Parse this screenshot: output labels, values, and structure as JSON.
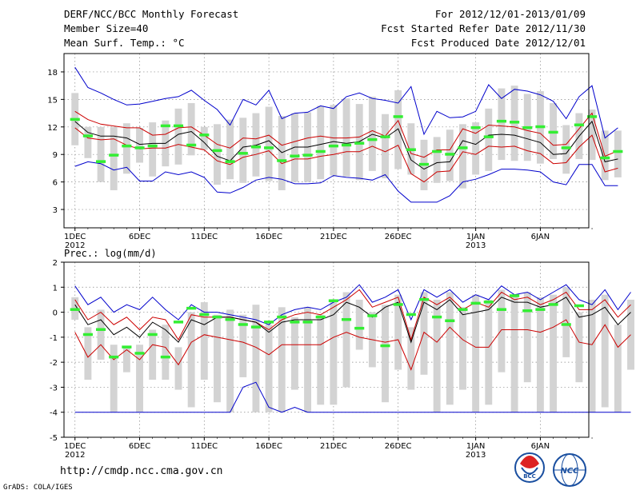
{
  "header": {
    "title": "DERF/NCC/BCC Monthly Forecast",
    "member_size": "Member Size=40",
    "variable": "Mean Surf. Temp.: °C",
    "period": "For 2012/12/01-2013/01/09",
    "started": "Fcst Started Refer Date 2012/11/30",
    "produced": "Fcst Produced Date 2012/12/01"
  },
  "footer": {
    "url": "http://cmdp.ncc.cma.gov.cn",
    "grads": "GrADS: COLA/IGES",
    "logo_bcc": "BCC",
    "logo_ncc": "NCC"
  },
  "colors": {
    "max_min": "#0000cc",
    "spread": "#cc0000",
    "mean": "#000000",
    "obs": "#33ee33",
    "box": "#d3d3d3",
    "grid": "#888888"
  },
  "chart_data": [
    {
      "type": "line",
      "title": "Mean Surf. Temp.: °C",
      "ylim": [
        1,
        20
      ],
      "yticks": [
        3,
        6,
        9,
        12,
        15,
        18
      ],
      "xtick_days": [
        1,
        6,
        11,
        16,
        21,
        26,
        32,
        37
      ],
      "xtick_labels": [
        "1DEC",
        "6DEC",
        "11DEC",
        "16DEC",
        "21DEC",
        "26DEC",
        "1JAN",
        "6JAN"
      ],
      "xtick_years": [
        "2012",
        "",
        "",
        "",
        "",
        "",
        "2013",
        ""
      ],
      "days": 40,
      "series": [
        {
          "name": "max",
          "values": [
            18.5,
            16.3,
            15.7,
            15.0,
            14.4,
            14.5,
            14.8,
            15.1,
            15.3,
            16.0,
            14.9,
            13.9,
            12.2,
            15.0,
            14.4,
            16.0,
            12.9,
            13.5,
            13.6,
            14.3,
            14.0,
            15.3,
            15.7,
            15.1,
            14.9,
            14.6,
            16.4,
            11.2,
            13.7,
            13.0,
            13.1,
            13.7,
            16.6,
            15.1,
            16.1,
            15.9,
            15.5,
            14.8,
            12.9,
            15.3,
            16.5,
            10.8,
            11.9
          ]
        },
        {
          "name": "upper",
          "values": [
            13.7,
            12.8,
            12.3,
            12.1,
            11.9,
            11.9,
            11.1,
            11.2,
            11.9,
            12.0,
            11.1,
            10.1,
            9.7,
            10.8,
            10.7,
            11.1,
            10.0,
            10.4,
            10.8,
            11.0,
            10.8,
            10.8,
            10.9,
            11.6,
            11.0,
            12.7,
            9.1,
            8.7,
            9.5,
            9.5,
            11.8,
            11.3,
            12.2,
            12.1,
            12.0,
            11.6,
            11.3,
            10.0,
            10.1,
            11.8,
            13.5,
            8.8,
            9.4
          ]
        },
        {
          "name": "mean",
          "values": [
            12.6,
            11.4,
            11.0,
            11.0,
            10.8,
            10.1,
            10.2,
            10.2,
            11.2,
            11.5,
            10.3,
            8.8,
            8.3,
            9.8,
            10.0,
            10.5,
            9.2,
            9.8,
            9.8,
            10.1,
            10.4,
            10.2,
            10.4,
            11.2,
            10.8,
            11.8,
            8.4,
            7.4,
            8.1,
            8.2,
            10.5,
            10.1,
            11.1,
            11.2,
            11.1,
            10.7,
            10.3,
            9.0,
            9.1,
            11.0,
            12.6,
            8.2,
            8.5
          ]
        },
        {
          "name": "lower",
          "values": [
            11.9,
            10.8,
            10.6,
            10.7,
            10.0,
            9.6,
            9.7,
            9.7,
            10.1,
            9.8,
            9.5,
            8.3,
            7.9,
            8.7,
            9.0,
            9.4,
            8.0,
            8.5,
            8.5,
            8.8,
            9.0,
            9.3,
            9.3,
            9.9,
            9.3,
            10.0,
            6.9,
            6.0,
            7.1,
            7.2,
            9.3,
            9.0,
            9.9,
            9.8,
            9.9,
            9.4,
            9.1,
            8.0,
            8.1,
            9.8,
            11.1,
            7.1,
            7.5
          ]
        },
        {
          "name": "min",
          "values": [
            7.7,
            8.2,
            8.0,
            7.3,
            7.6,
            6.1,
            6.1,
            7.1,
            6.8,
            7.1,
            6.5,
            4.9,
            4.8,
            5.4,
            6.2,
            6.5,
            6.3,
            5.8,
            5.8,
            5.9,
            6.7,
            6.5,
            6.4,
            6.2,
            6.8,
            5.0,
            3.8,
            3.8,
            3.8,
            4.5,
            6.0,
            6.3,
            6.8,
            7.4,
            7.4,
            7.3,
            7.1,
            6.0,
            5.7,
            7.9,
            7.9,
            5.6,
            5.6
          ]
        },
        {
          "name": "obs",
          "values": [
            12.8,
            11.0,
            8.2,
            8.9,
            9.9,
            9.7,
            9.9,
            12.1,
            12.1,
            10.0,
            11.1,
            9.4,
            8.2,
            9.1,
            9.8,
            9.7,
            8.3,
            8.8,
            8.9,
            9.3,
            9.9,
            10.0,
            10.2,
            10.6,
            10.9,
            13.1,
            9.5,
            7.9,
            9.3,
            9.0,
            9.7,
            11.9,
            10.9,
            12.6,
            12.5,
            11.9,
            12.0,
            11.4,
            9.7,
            12.2,
            13.1,
            8.6,
            9.3
          ]
        },
        {
          "name": "box_top",
          "values": [
            15.7,
            12.0,
            12.0,
            12.0,
            12.4,
            11.9,
            12.5,
            12.7,
            14.0,
            14.6,
            12.0,
            12.3,
            12.8,
            13.0,
            13.5,
            14.2,
            13.2,
            13.5,
            13.6,
            14.3,
            14.4,
            15.1,
            14.5,
            15.3,
            13.4,
            16.0,
            12.4,
            10.6,
            10.9,
            11.7,
            12.3,
            12.5,
            14.0,
            16.2,
            16.5,
            15.6,
            15.9,
            14.6,
            12.2,
            13.5,
            13.9,
            11.6,
            11.6
          ]
        },
        {
          "name": "box_bottom",
          "values": [
            10.0,
            8.6,
            6.0,
            5.1,
            6.9,
            8.1,
            6.6,
            7.7,
            7.9,
            8.9,
            9.5,
            5.7,
            6.3,
            5.9,
            6.6,
            6.1,
            5.1,
            6.0,
            6.0,
            6.3,
            6.7,
            6.6,
            6.2,
            7.2,
            6.4,
            7.4,
            6.8,
            5.1,
            5.9,
            6.1,
            5.3,
            6.8,
            7.2,
            8.4,
            8.3,
            8.3,
            8.0,
            8.5,
            6.9,
            8.5,
            8.4,
            6.2,
            6.5
          ]
        }
      ]
    },
    {
      "type": "line",
      "title": "Prec.: log(mm/d)",
      "ylim": [
        -5,
        2
      ],
      "yticks": [
        -5,
        -4,
        -3,
        -2,
        -1,
        0,
        1,
        2
      ],
      "xtick_days": [
        1,
        6,
        11,
        16,
        21,
        26,
        32,
        37
      ],
      "xtick_labels": [
        "1DEC",
        "6DEC",
        "11DEC",
        "16DEC",
        "21DEC",
        "26DEC",
        "1JAN",
        "6JAN"
      ],
      "xtick_years": [
        "2012",
        "",
        "",
        "",
        "",
        "",
        "2013",
        ""
      ],
      "days": 40,
      "series": [
        {
          "name": "max",
          "values": [
            1.05,
            0.3,
            0.6,
            0.0,
            0.3,
            0.1,
            0.6,
            0.1,
            -0.3,
            0.3,
            0.0,
            0.0,
            -0.1,
            -0.2,
            -0.3,
            -0.5,
            -0.1,
            0.1,
            0.2,
            0.1,
            0.4,
            0.6,
            1.1,
            0.4,
            0.6,
            0.9,
            -0.3,
            0.9,
            0.6,
            0.9,
            0.4,
            0.7,
            0.5,
            1.05,
            0.7,
            0.8,
            0.5,
            0.8,
            1.1,
            0.5,
            0.3,
            0.9,
            0.1,
            0.8
          ]
        },
        {
          "name": "upper",
          "values": [
            0.5,
            -0.3,
            0.0,
            -0.5,
            -0.2,
            -0.7,
            -0.2,
            -0.3,
            -1.1,
            -0.1,
            -0.2,
            -0.2,
            -0.2,
            -0.3,
            -0.4,
            -0.7,
            -0.3,
            -0.1,
            0.0,
            -0.1,
            0.2,
            0.5,
            0.9,
            0.2,
            0.4,
            0.6,
            -1.1,
            0.6,
            0.3,
            0.6,
            0.1,
            0.4,
            0.2,
            0.8,
            0.5,
            0.6,
            0.3,
            0.5,
            0.8,
            0.1,
            0.1,
            0.5,
            -0.2,
            0.3
          ]
        },
        {
          "name": "mean",
          "values": [
            0.3,
            -0.5,
            -0.3,
            -0.9,
            -0.6,
            -1.0,
            -0.4,
            -0.7,
            -1.2,
            -0.3,
            -0.5,
            -0.2,
            -0.2,
            -0.3,
            -0.4,
            -0.8,
            -0.4,
            -0.3,
            -0.3,
            -0.3,
            -0.1,
            0.4,
            0.2,
            -0.2,
            0.2,
            0.4,
            -1.2,
            0.4,
            0.1,
            0.5,
            -0.1,
            0.0,
            0.1,
            0.6,
            0.4,
            0.4,
            0.2,
            0.3,
            0.6,
            -0.2,
            -0.1,
            0.2,
            -0.5,
            0.0
          ]
        },
        {
          "name": "lower",
          "values": [
            -0.8,
            -1.8,
            -1.3,
            -1.9,
            -1.5,
            -1.9,
            -1.3,
            -1.4,
            -2.1,
            -1.2,
            -0.9,
            -1.0,
            -1.1,
            -1.2,
            -1.4,
            -1.7,
            -1.3,
            -1.3,
            -1.3,
            -1.3,
            -1.0,
            -0.8,
            -1.0,
            -1.1,
            -1.2,
            -1.1,
            -2.3,
            -0.8,
            -1.2,
            -0.6,
            -1.1,
            -1.4,
            -1.4,
            -0.7,
            -0.7,
            -0.7,
            -0.8,
            -0.6,
            -0.3,
            -1.2,
            -1.3,
            -0.5,
            -1.4,
            -0.9
          ]
        },
        {
          "name": "min",
          "values": [
            -4.0,
            -4.0,
            -4.0,
            -4.0,
            -4.0,
            -4.0,
            -4.0,
            -4.0,
            -4.0,
            -4.0,
            -4.0,
            -4.0,
            -4.0,
            -3.0,
            -2.8,
            -3.8,
            -4.0,
            -3.8,
            -4.0,
            -4.0,
            -4.0,
            -4.0,
            -4.0,
            -4.0,
            -4.0,
            -4.0,
            -4.0,
            -4.0,
            -4.0,
            -4.0,
            -4.0,
            -4.0,
            -4.0,
            -4.0,
            -4.0,
            -4.0,
            -4.0,
            -4.0,
            -4.0,
            -4.0,
            -4.0,
            -4.0,
            -4.0,
            -4.0
          ]
        },
        {
          "name": "obs",
          "values": [
            0.1,
            -0.9,
            -0.7,
            -1.8,
            -1.4,
            -1.65,
            -0.9,
            -1.8,
            -0.4,
            0.15,
            -0.1,
            -0.2,
            -0.3,
            -0.5,
            -0.6,
            -0.4,
            -0.2,
            -0.4,
            -0.4,
            -0.2,
            0.45,
            -0.3,
            -0.65,
            -0.15,
            -1.35,
            0.3,
            -0.1,
            0.5,
            -0.2,
            -0.35,
            0.1,
            0.35,
            0.4,
            0.1,
            0.65,
            0.05,
            0.1,
            0.3,
            -0.5,
            0.25
          ]
        },
        {
          "name": "box_top",
          "values": [
            0.6,
            -0.6,
            0.1,
            -1.3,
            -1.4,
            -1.3,
            -0.7,
            -0.5,
            -1.4,
            0.0,
            0.4,
            -0.1,
            0.1,
            -0.1,
            0.3,
            -0.5,
            0.2,
            -0.2,
            0.2,
            -0.1,
            0.5,
            0.8,
            0.5,
            0.0,
            0.3,
            0.7,
            -0.6,
            0.8,
            0.5,
            0.8,
            0.2,
            0.7,
            0.5,
            0.9,
            0.7,
            0.8,
            0.6,
            0.7,
            1.0,
            0.0,
            0.5,
            0.7,
            -0.5,
            0.5
          ]
        },
        {
          "name": "box_bottom",
          "values": [
            -0.3,
            -2.7,
            -1.9,
            -4.0,
            -2.4,
            -4.0,
            -2.7,
            -2.7,
            -3.1,
            -3.8,
            -2.7,
            -3.6,
            -4.0,
            -2.6,
            -4.0,
            -4.0,
            -4.0,
            -3.1,
            -4.0,
            -3.7,
            -3.7,
            -3.0,
            -1.5,
            -2.2,
            -3.6,
            -2.3,
            -3.1,
            -2.5,
            -4.0,
            -3.7,
            -3.1,
            -4.0,
            -3.7,
            -2.4,
            -4.0,
            -2.8,
            -4.0,
            -4.0,
            -1.8,
            -2.8,
            -4.0,
            -3.8,
            -4.0,
            -2.3
          ]
        }
      ]
    }
  ]
}
